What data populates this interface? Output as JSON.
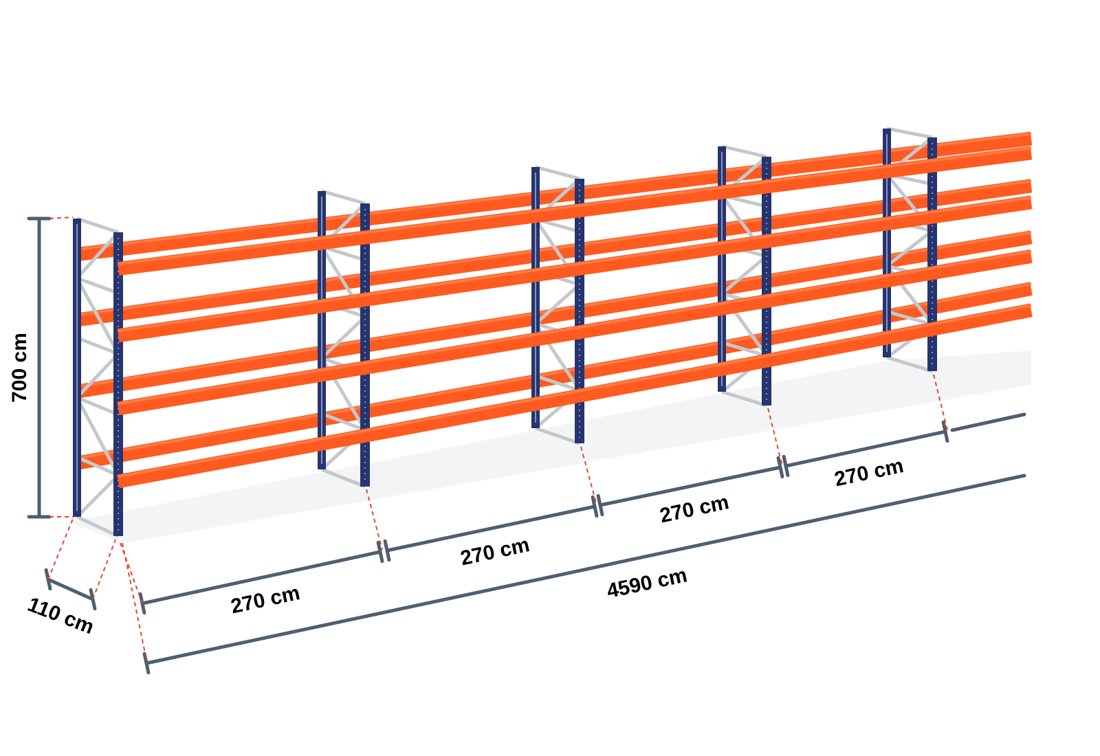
{
  "dimensions": {
    "height": "700 cm",
    "depth": "110 cm",
    "bays": [
      "270 cm",
      "270 cm",
      "270 cm",
      "270 cm"
    ],
    "total_length": "4590 cm"
  },
  "colors": {
    "upright": "#26346f",
    "beam": "#ff5a1f",
    "bracing": "#c4c8cc",
    "dimension": "#4f5f70",
    "leader": "#e8452a"
  }
}
